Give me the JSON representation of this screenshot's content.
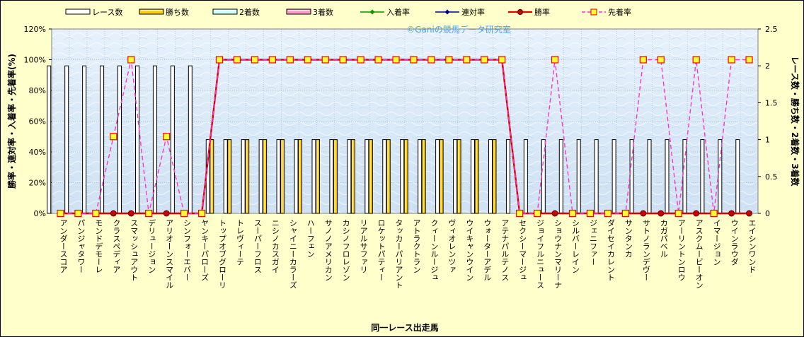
{
  "chart_data": {
    "type": "bar",
    "title": "",
    "watermark": "©Ganiの競馬データ研究室",
    "xlabel": "同一レース出走馬",
    "ylabel_left": "勝率・連対率・入着率・先着率(%)",
    "ylabel_right": "レース数・勝ち数・2着数・3着数",
    "ylim_left": [
      0,
      120
    ],
    "ylim_right": [
      0,
      2.5
    ],
    "yticks_left": [
      "0%",
      "20%",
      "40%",
      "60%",
      "80%",
      "100%",
      "120%"
    ],
    "yticks_right": [
      "0",
      "0.5",
      "1",
      "1.5",
      "2",
      "2.5"
    ],
    "grid": true,
    "legend_position": "top",
    "categories": [
      "アンダースコア",
      "パンジャタワー",
      "モンドデモーレ",
      "クラスペディア",
      "スマッシュアウト",
      "デリュージョン",
      "アリオーンスマイル",
      "シンフォーエバー",
      "ヤンキーパローズ",
      "トップオブグローリ",
      "トレヴィーテ",
      "スーパーフロス",
      "ニシノカスガイ",
      "シャイニーカラーズ",
      "ハーフェン",
      "サノノアメリカン",
      "カシノフロレゾン",
      "リアルサファリ",
      "ロケットパティー",
      "タッカーパリアント",
      "アトラクトラン",
      "クィーンルージュ",
      "ヴィオレンツァ",
      "ウイキャンウイン",
      "ウォーターアデル",
      "アテナパルテノス",
      "セクシーマージュ",
      "ジョイフルニュース",
      "ショウナンマリーナ",
      "シルバーレイン",
      "ジェニファー",
      "ダイセイカレント",
      "サンタンカ",
      "サトノランデヴー",
      "カガパベル",
      "アーリントンロウ",
      "アスクムービーオン",
      "イマージョン",
      "ウインラウダ",
      "エイシンワンド"
    ],
    "series": [
      {
        "name": "レース数",
        "axis": "right",
        "kind": "bar",
        "color": "#ffffff",
        "values": [
          2,
          2,
          2,
          2,
          2,
          2,
          2,
          2,
          2,
          1,
          1,
          1,
          1,
          1,
          1,
          1,
          1,
          1,
          1,
          1,
          1,
          1,
          1,
          1,
          1,
          1,
          1,
          1,
          1,
          1,
          1,
          1,
          1,
          1,
          1,
          1,
          1,
          1,
          1,
          1
        ]
      },
      {
        "name": "勝ち数",
        "axis": "right",
        "kind": "bar",
        "color": "#ffcc00",
        "values": [
          0,
          0,
          0,
          0,
          0,
          0,
          0,
          0,
          0,
          1,
          1,
          1,
          1,
          1,
          1,
          1,
          1,
          1,
          1,
          1,
          1,
          1,
          1,
          1,
          1,
          1,
          0,
          0,
          0,
          0,
          0,
          0,
          0,
          0,
          0,
          0,
          0,
          0,
          0,
          0
        ]
      },
      {
        "name": "2着数",
        "axis": "right",
        "kind": "bar",
        "color": "#ccffff",
        "values": [
          0,
          0,
          0,
          0,
          0,
          0,
          0,
          0,
          0,
          0,
          0,
          0,
          0,
          0,
          0,
          0,
          0,
          0,
          0,
          0,
          0,
          0,
          0,
          0,
          0,
          0,
          0,
          0,
          0,
          0,
          0,
          0,
          0,
          0,
          0,
          0,
          0,
          0,
          0,
          0
        ]
      },
      {
        "name": "3着数",
        "axis": "right",
        "kind": "bar",
        "color": "#ff99cc",
        "values": [
          0,
          0,
          0,
          0,
          0,
          0,
          0,
          0,
          0,
          0,
          0,
          0,
          0,
          0,
          0,
          0,
          0,
          0,
          0,
          0,
          0,
          0,
          0,
          0,
          0,
          0,
          0,
          0,
          0,
          0,
          0,
          0,
          0,
          0,
          0,
          0,
          0,
          0,
          0,
          0
        ]
      },
      {
        "name": "入着率",
        "axis": "left",
        "kind": "line",
        "color": "#009900",
        "marker": "diamond",
        "values": [
          0,
          0,
          0,
          0,
          0,
          0,
          0,
          0,
          0,
          100,
          100,
          100,
          100,
          100,
          100,
          100,
          100,
          100,
          100,
          100,
          100,
          100,
          100,
          100,
          100,
          100,
          0,
          0,
          0,
          0,
          0,
          0,
          0,
          0,
          0,
          0,
          0,
          0,
          0,
          0
        ]
      },
      {
        "name": "連対率",
        "axis": "left",
        "kind": "line",
        "color": "#000099",
        "marker": "diamond",
        "values": [
          0,
          0,
          0,
          0,
          0,
          0,
          0,
          0,
          0,
          100,
          100,
          100,
          100,
          100,
          100,
          100,
          100,
          100,
          100,
          100,
          100,
          100,
          100,
          100,
          100,
          100,
          0,
          0,
          0,
          0,
          0,
          0,
          0,
          0,
          0,
          0,
          0,
          0,
          0,
          0
        ]
      },
      {
        "name": "勝率",
        "axis": "left",
        "kind": "line",
        "color": "#dd0000",
        "marker": "circle",
        "values": [
          0,
          0,
          0,
          0,
          0,
          0,
          0,
          0,
          0,
          100,
          100,
          100,
          100,
          100,
          100,
          100,
          100,
          100,
          100,
          100,
          100,
          100,
          100,
          100,
          100,
          100,
          0,
          0,
          0,
          0,
          0,
          0,
          0,
          0,
          0,
          0,
          0,
          0,
          0,
          0
        ]
      },
      {
        "name": "先着率",
        "axis": "left",
        "kind": "line",
        "color": "#ff33cc",
        "marker": "square",
        "dashed": true,
        "values": [
          0,
          0,
          0,
          50,
          100,
          0,
          50,
          0,
          0,
          100,
          100,
          100,
          100,
          100,
          100,
          100,
          100,
          100,
          100,
          100,
          100,
          100,
          100,
          100,
          100,
          100,
          0,
          0,
          100,
          0,
          0,
          0,
          0,
          100,
          100,
          0,
          100,
          0,
          100,
          100
        ]
      }
    ]
  }
}
